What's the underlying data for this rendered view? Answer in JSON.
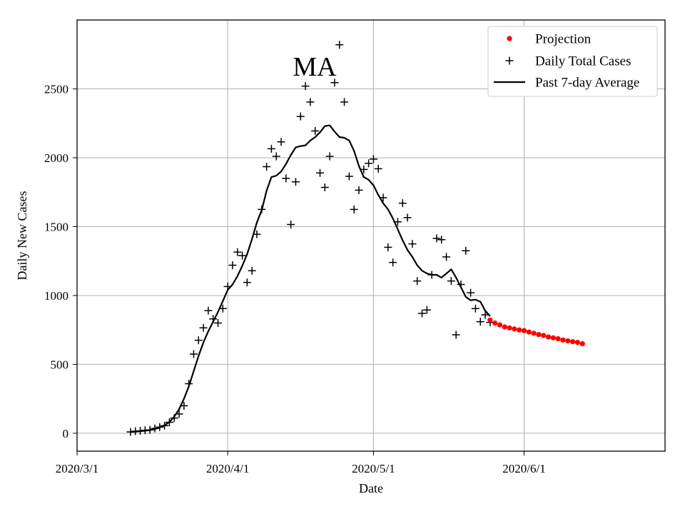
{
  "chart_data": {
    "type": "line",
    "title": "MA",
    "xlabel": "Date",
    "ylabel": "Daily New Cases",
    "grid": true,
    "legend_position": "top-right",
    "xlim": [
      "2020-03-01",
      "2020-06-30"
    ],
    "ylim": [
      -130,
      3000
    ],
    "x_ticks": [
      {
        "date": "2020-03-01",
        "label": "2020/3/1"
      },
      {
        "date": "2020-04-01",
        "label": "2020/4/1"
      },
      {
        "date": "2020-05-01",
        "label": "2020/5/1"
      },
      {
        "date": "2020-06-01",
        "label": "2020/6/1"
      }
    ],
    "y_ticks": [
      0,
      500,
      1000,
      1500,
      2000,
      2500
    ],
    "series": [
      {
        "name": "Projection",
        "kind": "scatter",
        "marker": "dot",
        "color": "#ff0000",
        "points": [
          [
            "2020-05-25",
            822
          ],
          [
            "2020-05-26",
            800
          ],
          [
            "2020-05-27",
            787
          ],
          [
            "2020-05-28",
            772
          ],
          [
            "2020-05-29",
            765
          ],
          [
            "2020-05-30",
            757
          ],
          [
            "2020-05-31",
            750
          ],
          [
            "2020-06-01",
            745
          ],
          [
            "2020-06-02",
            735
          ],
          [
            "2020-06-03",
            726
          ],
          [
            "2020-06-04",
            717
          ],
          [
            "2020-06-05",
            710
          ],
          [
            "2020-06-06",
            699
          ],
          [
            "2020-06-07",
            693
          ],
          [
            "2020-06-08",
            686
          ],
          [
            "2020-06-09",
            677
          ],
          [
            "2020-06-10",
            671
          ],
          [
            "2020-06-11",
            665
          ],
          [
            "2020-06-12",
            660
          ],
          [
            "2020-06-13",
            650
          ]
        ]
      },
      {
        "name": "Daily Total Cases",
        "kind": "scatter",
        "marker": "plus",
        "color": "#000000",
        "points": [
          [
            "2020-03-12",
            10
          ],
          [
            "2020-03-13",
            15
          ],
          [
            "2020-03-14",
            18
          ],
          [
            "2020-03-15",
            22
          ],
          [
            "2020-03-16",
            25
          ],
          [
            "2020-03-17",
            35
          ],
          [
            "2020-03-18",
            45
          ],
          [
            "2020-03-19",
            55
          ],
          [
            "2020-03-20",
            80
          ],
          [
            "2020-03-21",
            110
          ],
          [
            "2020-03-22",
            140
          ],
          [
            "2020-03-23",
            200
          ],
          [
            "2020-03-24",
            360
          ],
          [
            "2020-03-25",
            575
          ],
          [
            "2020-03-26",
            675
          ],
          [
            "2020-03-27",
            765
          ],
          [
            "2020-03-28",
            890
          ],
          [
            "2020-03-29",
            830
          ],
          [
            "2020-03-30",
            800
          ],
          [
            "2020-03-31",
            905
          ],
          [
            "2020-04-01",
            1065
          ],
          [
            "2020-04-02",
            1220
          ],
          [
            "2020-04-03",
            1315
          ],
          [
            "2020-04-04",
            1290
          ],
          [
            "2020-04-05",
            1095
          ],
          [
            "2020-04-06",
            1180
          ],
          [
            "2020-04-07",
            1445
          ],
          [
            "2020-04-08",
            1625
          ],
          [
            "2020-04-09",
            1935
          ],
          [
            "2020-04-10",
            2065
          ],
          [
            "2020-04-11",
            2010
          ],
          [
            "2020-04-12",
            2115
          ],
          [
            "2020-04-13",
            1850
          ],
          [
            "2020-04-14",
            1515
          ],
          [
            "2020-04-15",
            1825
          ],
          [
            "2020-04-16",
            2300
          ],
          [
            "2020-04-17",
            2520
          ],
          [
            "2020-04-18",
            2405
          ],
          [
            "2020-04-19",
            2195
          ],
          [
            "2020-04-20",
            1890
          ],
          [
            "2020-04-21",
            1785
          ],
          [
            "2020-04-22",
            2010
          ],
          [
            "2020-04-23",
            2545
          ],
          [
            "2020-04-24",
            2820
          ],
          [
            "2020-04-25",
            2405
          ],
          [
            "2020-04-26",
            1865
          ],
          [
            "2020-04-27",
            1625
          ],
          [
            "2020-04-28",
            1765
          ],
          [
            "2020-04-29",
            1915
          ],
          [
            "2020-04-30",
            1960
          ],
          [
            "2020-05-01",
            1990
          ],
          [
            "2020-05-02",
            1920
          ],
          [
            "2020-05-03",
            1710
          ],
          [
            "2020-05-04",
            1350
          ],
          [
            "2020-05-05",
            1240
          ],
          [
            "2020-05-06",
            1535
          ],
          [
            "2020-05-07",
            1670
          ],
          [
            "2020-05-08",
            1565
          ],
          [
            "2020-05-09",
            1375
          ],
          [
            "2020-05-10",
            1105
          ],
          [
            "2020-05-11",
            870
          ],
          [
            "2020-05-12",
            895
          ],
          [
            "2020-05-13",
            1150
          ],
          [
            "2020-05-14",
            1415
          ],
          [
            "2020-05-15",
            1405
          ],
          [
            "2020-05-16",
            1280
          ],
          [
            "2020-05-17",
            1105
          ],
          [
            "2020-05-18",
            715
          ],
          [
            "2020-05-19",
            1080
          ],
          [
            "2020-05-20",
            1325
          ],
          [
            "2020-05-21",
            1020
          ],
          [
            "2020-05-22",
            905
          ],
          [
            "2020-05-23",
            810
          ],
          [
            "2020-05-24",
            860
          ],
          [
            "2020-05-25",
            805
          ]
        ]
      },
      {
        "name": "Past 7-day Average",
        "kind": "line",
        "color": "#000000",
        "points": [
          [
            "2020-03-12",
            10
          ],
          [
            "2020-03-13",
            12
          ],
          [
            "2020-03-14",
            15
          ],
          [
            "2020-03-15",
            18
          ],
          [
            "2020-03-16",
            23
          ],
          [
            "2020-03-17",
            30
          ],
          [
            "2020-03-18",
            42
          ],
          [
            "2020-03-19",
            58
          ],
          [
            "2020-03-20",
            82
          ],
          [
            "2020-03-21",
            120
          ],
          [
            "2020-03-22",
            175
          ],
          [
            "2020-03-23",
            250
          ],
          [
            "2020-03-24",
            340
          ],
          [
            "2020-03-25",
            450
          ],
          [
            "2020-03-26",
            560
          ],
          [
            "2020-03-27",
            660
          ],
          [
            "2020-03-28",
            740
          ],
          [
            "2020-03-29",
            810
          ],
          [
            "2020-03-30",
            880
          ],
          [
            "2020-03-31",
            960
          ],
          [
            "2020-04-01",
            1040
          ],
          [
            "2020-04-02",
            1080
          ],
          [
            "2020-04-03",
            1140
          ],
          [
            "2020-04-04",
            1215
          ],
          [
            "2020-04-05",
            1300
          ],
          [
            "2020-04-06",
            1410
          ],
          [
            "2020-04-07",
            1530
          ],
          [
            "2020-04-08",
            1620
          ],
          [
            "2020-04-09",
            1760
          ],
          [
            "2020-04-10",
            1860
          ],
          [
            "2020-04-11",
            1870
          ],
          [
            "2020-04-12",
            1900
          ],
          [
            "2020-04-13",
            1955
          ],
          [
            "2020-04-14",
            2020
          ],
          [
            "2020-04-15",
            2075
          ],
          [
            "2020-04-16",
            2085
          ],
          [
            "2020-04-17",
            2090
          ],
          [
            "2020-04-18",
            2125
          ],
          [
            "2020-04-19",
            2150
          ],
          [
            "2020-04-20",
            2185
          ],
          [
            "2020-04-21",
            2230
          ],
          [
            "2020-04-22",
            2235
          ],
          [
            "2020-04-23",
            2190
          ],
          [
            "2020-04-24",
            2150
          ],
          [
            "2020-04-25",
            2145
          ],
          [
            "2020-04-26",
            2125
          ],
          [
            "2020-04-27",
            2050
          ],
          [
            "2020-04-28",
            1940
          ],
          [
            "2020-04-29",
            1860
          ],
          [
            "2020-04-30",
            1840
          ],
          [
            "2020-05-01",
            1800
          ],
          [
            "2020-05-02",
            1730
          ],
          [
            "2020-05-03",
            1670
          ],
          [
            "2020-05-04",
            1625
          ],
          [
            "2020-05-05",
            1560
          ],
          [
            "2020-05-06",
            1480
          ],
          [
            "2020-05-07",
            1400
          ],
          [
            "2020-05-08",
            1330
          ],
          [
            "2020-05-09",
            1280
          ],
          [
            "2020-05-10",
            1220
          ],
          [
            "2020-05-11",
            1180
          ],
          [
            "2020-05-12",
            1160
          ],
          [
            "2020-05-13",
            1150
          ],
          [
            "2020-05-14",
            1150
          ],
          [
            "2020-05-15",
            1130
          ],
          [
            "2020-05-16",
            1160
          ],
          [
            "2020-05-17",
            1190
          ],
          [
            "2020-05-18",
            1130
          ],
          [
            "2020-05-19",
            1060
          ],
          [
            "2020-05-20",
            990
          ],
          [
            "2020-05-21",
            965
          ],
          [
            "2020-05-22",
            970
          ],
          [
            "2020-05-23",
            955
          ],
          [
            "2020-05-24",
            890
          ],
          [
            "2020-05-25",
            850
          ]
        ]
      }
    ]
  }
}
